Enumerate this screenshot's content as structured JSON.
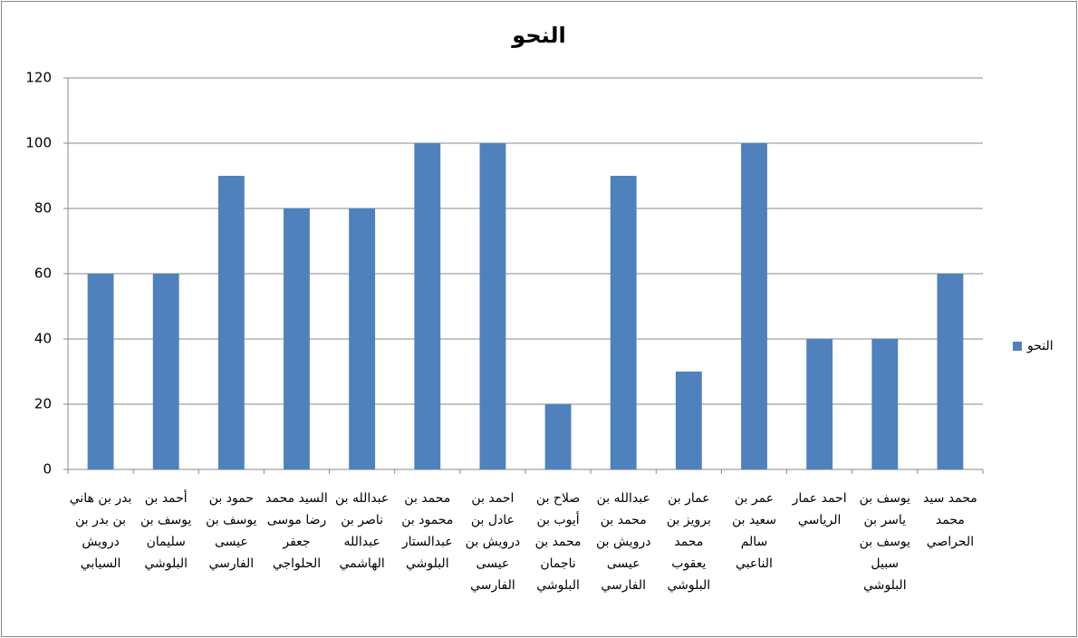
{
  "chart_data": {
    "type": "bar",
    "title": "النحو",
    "categories": [
      "بدر بن هاني بن بدر بن درويش السيابي",
      "أحمد بن يوسف بن سليمان البلوشي",
      "حمود بن يوسف بن عيسى الفارسي",
      "السيد محمد رضا موسى جعفر الحلواجي",
      "عبدالله بن ناصر بن عبدالله الهاشمي",
      "محمد بن محمود بن عبدالستار البلوشي",
      "احمد بن عادل بن درويش بن عيسى الفارسي",
      "صلاح بن أيوب بن محمد بن ناجمان البلوشي",
      "عبدالله بن محمد بن درويش بن عيسى الفارسي",
      "عمار بن برويز بن محمد يعقوب البلوشي",
      "عمر بن سعيد بن سالم الناعبي",
      "احمد عمار الرياسي",
      "يوسف بن ياسر بن يوسف بن سبيل البلوشي",
      "محمد سيد محمد الحراصي"
    ],
    "series": [
      {
        "name": "النحو",
        "color": "#4f81bd",
        "values": [
          60,
          60,
          90,
          80,
          80,
          100,
          100,
          20,
          90,
          30,
          100,
          40,
          40,
          60
        ]
      }
    ],
    "ylim": [
      0,
      120
    ],
    "yticks": [
      0,
      20,
      40,
      60,
      80,
      100,
      120
    ],
    "grid": true,
    "legend": "right"
  }
}
